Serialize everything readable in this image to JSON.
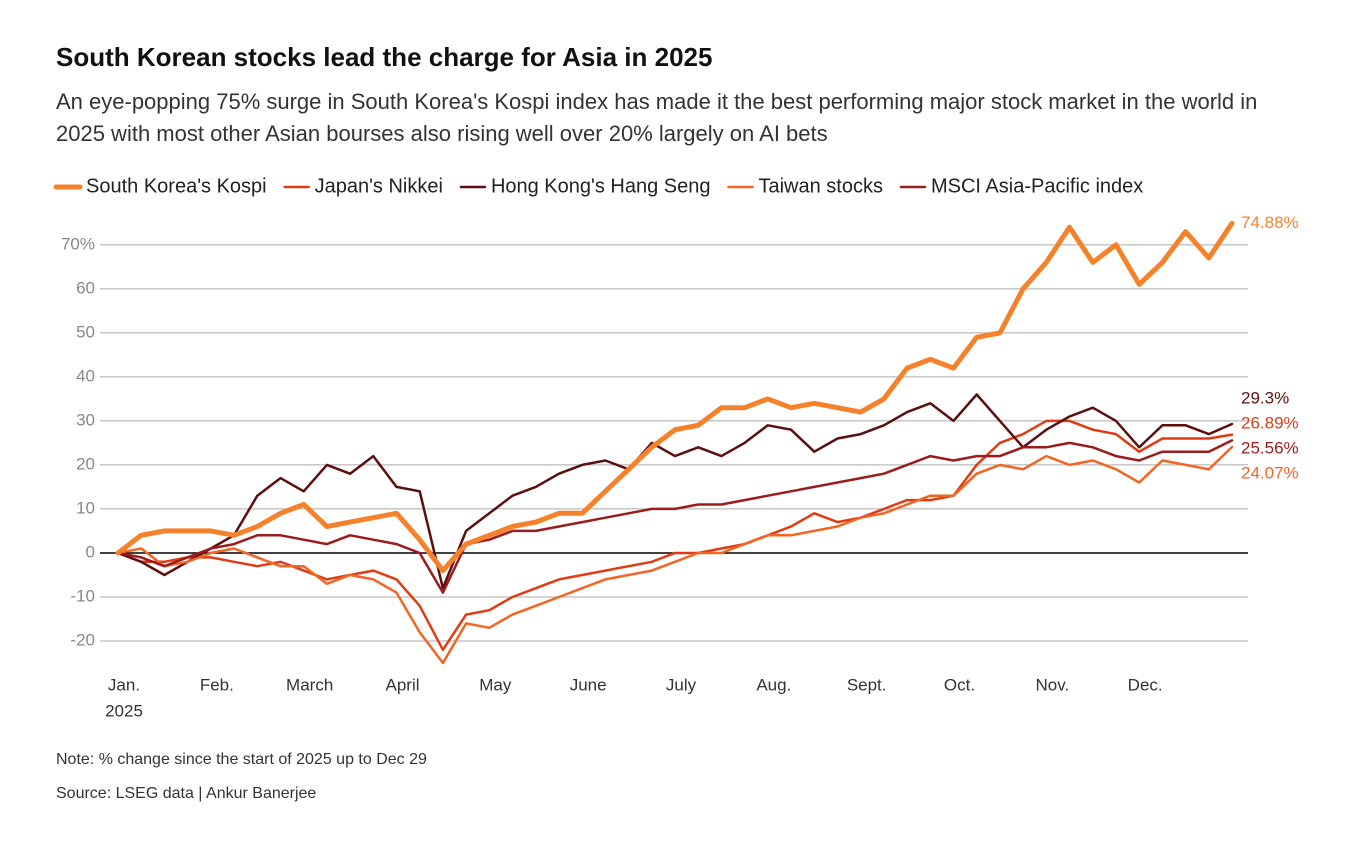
{
  "chart_data": {
    "type": "line",
    "title": "South Korean stocks lead the charge for Asia in 2025",
    "subtitle": "An eye-popping 75% surge in South Korea's Kospi index has made it the best performing major stock market in the world in 2025 with most other Asian bourses also rising well over 20% largely on AI bets",
    "note": "Note: % change since the start of 2025 up to Dec 29",
    "source": "Source: LSEG data | Ankur Banerjee",
    "x_year": "2025",
    "categories": [
      "Jan.",
      null,
      null,
      null,
      "Feb.",
      null,
      null,
      null,
      "March",
      null,
      null,
      null,
      "April",
      null,
      null,
      null,
      "May",
      null,
      null,
      null,
      "June",
      null,
      null,
      null,
      "July",
      null,
      null,
      null,
      "Aug.",
      null,
      null,
      null,
      "Sept.",
      null,
      null,
      null,
      "Oct.",
      null,
      null,
      null,
      "Nov.",
      null,
      null,
      null,
      "Dec.",
      null,
      null,
      null,
      null
    ],
    "ylim": [
      -25,
      77
    ],
    "yticks": [
      -20,
      -10,
      0,
      10,
      20,
      30,
      40,
      50,
      60,
      {
        "value": 70,
        "label": "70%"
      }
    ],
    "grid": true,
    "series": [
      {
        "name": "South Korea's Kospi",
        "color": "#f5822a",
        "width": 5,
        "values": [
          0,
          4,
          5,
          5,
          5,
          4,
          6,
          9,
          11,
          6,
          7,
          8,
          9,
          3,
          -4,
          2,
          4,
          6,
          7,
          9,
          9,
          14,
          19,
          24,
          28,
          29,
          33,
          33,
          35,
          33,
          34,
          33,
          32,
          35,
          42,
          44,
          42,
          49,
          50,
          60,
          66,
          74,
          66,
          70,
          61,
          66,
          73,
          67,
          74.88
        ],
        "value_labels": [
          null,
          null,
          null,
          null,
          null,
          null,
          null,
          null,
          null,
          null,
          null,
          null,
          null,
          null,
          null,
          null,
          null,
          null,
          null,
          null,
          null,
          null,
          null,
          null,
          null,
          null,
          null,
          null,
          null,
          null,
          null,
          null,
          null,
          null,
          null,
          null,
          null,
          null,
          null,
          null,
          null,
          null,
          null,
          null,
          null,
          null,
          null,
          null,
          "74.88%"
        ]
      },
      {
        "name": "Japan's Nikkei",
        "color": "#e03c14",
        "width": 2.5,
        "values": [
          0,
          -2,
          -2,
          -1,
          -1,
          -2,
          -3,
          -2,
          -4,
          -6,
          -5,
          -4,
          -6,
          -12,
          -22,
          -14,
          -13,
          -10,
          -8,
          -6,
          -5,
          -4,
          -3,
          -2,
          0,
          0,
          1,
          2,
          4,
          6,
          9,
          7,
          8,
          10,
          12,
          12,
          13,
          20,
          25,
          27,
          30,
          30,
          28,
          27,
          23,
          26,
          26,
          26,
          26.89
        ],
        "value_labels": [
          null,
          null,
          null,
          null,
          null,
          null,
          null,
          null,
          null,
          null,
          null,
          null,
          null,
          null,
          null,
          null,
          null,
          null,
          null,
          null,
          null,
          null,
          null,
          null,
          null,
          null,
          null,
          null,
          null,
          null,
          null,
          null,
          null,
          null,
          null,
          null,
          null,
          null,
          null,
          null,
          null,
          null,
          null,
          null,
          null,
          null,
          null,
          null,
          "26.89%"
        ]
      },
      {
        "name": "Hong Kong's Hang Seng",
        "color": "#5c0f0f",
        "width": 2.5,
        "values": [
          0,
          -2,
          -5,
          -2,
          1,
          4,
          13,
          17,
          14,
          20,
          18,
          22,
          15,
          14,
          -8,
          5,
          9,
          13,
          15,
          18,
          20,
          21,
          19,
          25,
          22,
          24,
          22,
          25,
          29,
          28,
          23,
          26,
          27,
          29,
          32,
          34,
          30,
          36,
          30,
          24,
          28,
          31,
          33,
          30,
          24,
          29,
          29,
          27,
          29.3
        ],
        "value_labels": [
          null,
          null,
          null,
          null,
          null,
          null,
          null,
          null,
          null,
          null,
          null,
          null,
          null,
          null,
          null,
          null,
          null,
          null,
          null,
          null,
          null,
          null,
          null,
          null,
          null,
          null,
          null,
          null,
          null,
          null,
          null,
          null,
          null,
          null,
          null,
          null,
          null,
          null,
          null,
          null,
          null,
          null,
          null,
          null,
          null,
          null,
          null,
          null,
          "29.3%"
        ]
      },
      {
        "name": "Taiwan stocks",
        "color": "#f26522",
        "width": 2.5,
        "values": [
          0,
          1,
          -3,
          -2,
          0,
          1,
          -1,
          -3,
          -3,
          -7,
          -5,
          -6,
          -9,
          -18,
          -25,
          -16,
          -17,
          -14,
          -12,
          -10,
          -8,
          -6,
          -5,
          -4,
          -2,
          0,
          0,
          2,
          4,
          4,
          5,
          6,
          8,
          9,
          11,
          13,
          13,
          18,
          20,
          19,
          22,
          20,
          21,
          19,
          16,
          21,
          20,
          19,
          24.07
        ],
        "value_labels": [
          null,
          null,
          null,
          null,
          null,
          null,
          null,
          null,
          null,
          null,
          null,
          null,
          null,
          null,
          null,
          null,
          null,
          null,
          null,
          null,
          null,
          null,
          null,
          null,
          null,
          null,
          null,
          null,
          null,
          null,
          null,
          null,
          null,
          null,
          null,
          null,
          null,
          null,
          null,
          null,
          null,
          null,
          null,
          null,
          null,
          null,
          null,
          null,
          "24.07%"
        ]
      },
      {
        "name": "MSCI Asia-Pacific index",
        "color": "#9b1c1c",
        "width": 2.5,
        "values": [
          0,
          -1,
          -3,
          -1,
          1,
          2,
          4,
          4,
          3,
          2,
          4,
          3,
          2,
          0,
          -9,
          2,
          3,
          5,
          5,
          6,
          7,
          8,
          9,
          10,
          10,
          11,
          11,
          12,
          13,
          14,
          15,
          16,
          17,
          18,
          20,
          22,
          21,
          22,
          22,
          24,
          24,
          25,
          24,
          22,
          21,
          23,
          23,
          23,
          25.56
        ],
        "value_labels": [
          null,
          null,
          null,
          null,
          null,
          null,
          null,
          null,
          null,
          null,
          null,
          null,
          null,
          null,
          null,
          null,
          null,
          null,
          null,
          null,
          null,
          null,
          null,
          null,
          null,
          null,
          null,
          null,
          null,
          null,
          null,
          null,
          null,
          null,
          null,
          null,
          null,
          null,
          null,
          null,
          null,
          null,
          null,
          null,
          null,
          null,
          null,
          null,
          "25.56%"
        ]
      }
    ]
  }
}
